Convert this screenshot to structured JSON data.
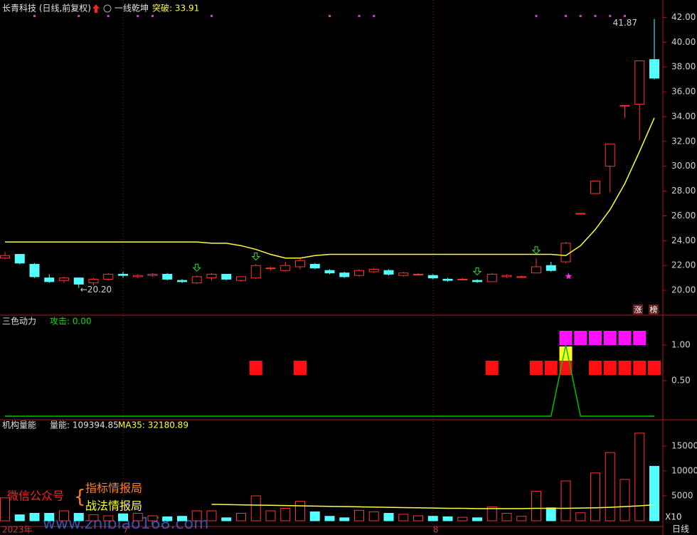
{
  "chart_data": [
    {
      "type": "candlestick",
      "title": "长青科技 (日线,前复权)",
      "indicator": "一线乾坤",
      "indicator_label": "突破: 33.91",
      "categories": [
        "2023年",
        null,
        null,
        null,
        null,
        null,
        null,
        null,
        "7",
        null,
        null,
        null,
        null,
        null,
        null,
        null,
        null,
        null,
        null,
        null,
        null,
        null,
        null,
        null,
        null,
        null,
        null,
        null,
        null,
        "8",
        null,
        null,
        null,
        null,
        null,
        null,
        null,
        null,
        null,
        null,
        null,
        null,
        null,
        null,
        null
      ],
      "open": [
        22.6,
        22.9,
        22.1,
        21.0,
        20.8,
        21.0,
        20.6,
        20.9,
        21.3,
        21.1,
        21.2,
        21.3,
        20.8,
        20.6,
        21.0,
        21.3,
        20.8,
        21.0,
        21.8,
        21.6,
        21.9,
        22.1,
        21.6,
        21.4,
        21.2,
        21.5,
        21.6,
        21.2,
        21.3,
        21.2,
        20.9,
        20.9,
        20.8,
        20.7,
        21.1,
        21.1,
        21.4,
        22.0,
        22.3,
        26.2,
        27.8,
        30.0,
        34.9,
        35.0,
        38.6
      ],
      "high": [
        23.1,
        22.9,
        22.2,
        21.3,
        21.1,
        21.0,
        21.0,
        21.4,
        21.5,
        21.3,
        21.4,
        21.4,
        20.9,
        21.2,
        21.4,
        21.3,
        21.1,
        22.1,
        21.9,
        22.3,
        22.6,
        22.2,
        21.7,
        21.5,
        21.7,
        21.8,
        21.7,
        21.5,
        21.4,
        21.3,
        21.0,
        21.0,
        20.9,
        21.4,
        21.3,
        21.2,
        22.6,
        22.3,
        23.9,
        26.2,
        28.8,
        31.8,
        34.9,
        38.5,
        41.87
      ],
      "low": [
        22.5,
        22.1,
        21.0,
        20.6,
        20.6,
        20.2,
        20.4,
        20.8,
        21.0,
        21.0,
        21.1,
        20.8,
        20.6,
        20.5,
        20.8,
        20.8,
        20.7,
        20.9,
        21.6,
        21.5,
        21.7,
        21.7,
        21.3,
        21.0,
        21.1,
        21.4,
        21.2,
        21.1,
        21.2,
        20.9,
        20.7,
        20.8,
        20.6,
        20.7,
        21.0,
        21.0,
        21.4,
        21.5,
        22.2,
        26.2,
        27.8,
        27.9,
        33.9,
        32.1,
        37.0
      ],
      "close": [
        22.8,
        22.2,
        21.1,
        20.7,
        21.0,
        20.5,
        20.9,
        21.3,
        21.2,
        21.2,
        21.3,
        20.9,
        20.7,
        21.1,
        21.3,
        20.9,
        21.1,
        22.0,
        21.8,
        22.0,
        22.4,
        21.8,
        21.4,
        21.1,
        21.6,
        21.7,
        21.3,
        21.4,
        21.3,
        21.0,
        20.8,
        20.9,
        20.7,
        21.3,
        21.2,
        21.1,
        21.9,
        21.6,
        23.8,
        26.2,
        28.8,
        31.8,
        34.9,
        38.5,
        37.1
      ],
      "up_color": "#ff3232",
      "down_color": "#54ffff",
      "line": {
        "color": "#ffff3c",
        "values": [
          23.9,
          23.9,
          23.9,
          23.9,
          23.9,
          23.9,
          23.9,
          23.9,
          23.9,
          23.9,
          23.9,
          23.9,
          23.9,
          23.9,
          23.8,
          23.8,
          23.6,
          23.3,
          22.9,
          22.6,
          22.6,
          22.8,
          22.9,
          22.9,
          22.9,
          22.9,
          22.9,
          22.9,
          22.9,
          22.9,
          22.9,
          22.9,
          22.9,
          22.9,
          22.9,
          22.9,
          22.9,
          22.9,
          22.8,
          23.6,
          24.9,
          26.5,
          28.6,
          31.2,
          33.9
        ]
      },
      "annotations": [
        {
          "index": 44,
          "value": 41.87,
          "label": "41.87"
        },
        {
          "index": 5,
          "value": 20.2,
          "label": "←20.20"
        }
      ],
      "top_dots": [
        2,
        5,
        7,
        9,
        10,
        14,
        22,
        24,
        25,
        36,
        38,
        39,
        40,
        41,
        42
      ],
      "down_arrows": [
        13,
        17,
        32,
        36
      ],
      "star": {
        "index": 38,
        "value": 21.1
      },
      "ylim": [
        18,
        43.4
      ],
      "yticks": [
        {
          "value": 20,
          "label": "20.00"
        },
        {
          "value": 22,
          "label": "22.00"
        },
        {
          "value": 24,
          "label": "24.00"
        },
        {
          "value": 26,
          "label": "26.00"
        },
        {
          "value": 28,
          "label": "28.00"
        },
        {
          "value": 30,
          "label": "30.00"
        },
        {
          "value": 32,
          "label": "32.00"
        },
        {
          "value": 34,
          "label": "34.00"
        },
        {
          "value": 36,
          "label": "36.00"
        },
        {
          "value": 38,
          "label": "38.00"
        },
        {
          "value": 40,
          "label": "40.00"
        },
        {
          "value": 42,
          "label": "42.00"
        }
      ],
      "badges": [
        "涨",
        "榜"
      ]
    },
    {
      "type": "signal",
      "title": "三色动力",
      "value_label": "攻击: 0.00",
      "line": {
        "color": "#00c000",
        "values": [
          0,
          0,
          0,
          0,
          0,
          0,
          0,
          0,
          0,
          0,
          0,
          0,
          0,
          0,
          0,
          0,
          0,
          0,
          0,
          0,
          0,
          0,
          0,
          0,
          0,
          0,
          0,
          0,
          0,
          0,
          0,
          0,
          0,
          0,
          0,
          0,
          0,
          0,
          1,
          0,
          0,
          0,
          0,
          0,
          0
        ]
      },
      "red": [
        17,
        20,
        33,
        36,
        37,
        38,
        40,
        41,
        42,
        43,
        44
      ],
      "magenta": [
        38,
        39,
        40,
        41,
        42,
        43
      ],
      "yellow": [
        38
      ],
      "ylim": [
        -0.05,
        1.42
      ],
      "yticks": [
        {
          "value": 0.5,
          "label": "0.50"
        },
        {
          "value": 1,
          "label": "1.00"
        }
      ]
    },
    {
      "type": "bar",
      "title": "机构量能",
      "value_label": "量能: 109394.85",
      "ma_label": "MA35: 32180.89",
      "scale_label": "X10",
      "values": [
        4600,
        1200,
        1500,
        1500,
        2000,
        1500,
        1200,
        1000,
        1400,
        1500,
        1000,
        800,
        900,
        2000,
        2000,
        600,
        1500,
        5000,
        2000,
        2500,
        3900,
        1800,
        900,
        600,
        2100,
        1800,
        1500,
        1300,
        1000,
        900,
        800,
        700,
        600,
        2800,
        1500,
        900,
        5900,
        2600,
        8000,
        1600,
        9600,
        13700,
        8300,
        17600,
        10939.485
      ],
      "ma": {
        "color": "#ffff3c",
        "values": [
          null,
          null,
          null,
          null,
          null,
          null,
          null,
          null,
          null,
          null,
          null,
          null,
          null,
          null,
          3300,
          3250,
          3200,
          3150,
          3100,
          3050,
          3000,
          2950,
          2900,
          2850,
          2800,
          2750,
          2700,
          2650,
          2600,
          2550,
          2500,
          2500,
          2450,
          2450,
          2450,
          2450,
          2500,
          2500,
          2500,
          2550,
          2600,
          2700,
          2850,
          3000,
          3218.089
        ]
      },
      "ylim": [
        -1143,
        20286
      ],
      "yticks": [
        5000,
        10000,
        15000
      ]
    }
  ],
  "footer": {
    "period": "日线",
    "watermark": "www.zhibiao168.com",
    "wechat": "微信公众号",
    "brand1": "指标情报局",
    "brand2": "战法情报局"
  }
}
